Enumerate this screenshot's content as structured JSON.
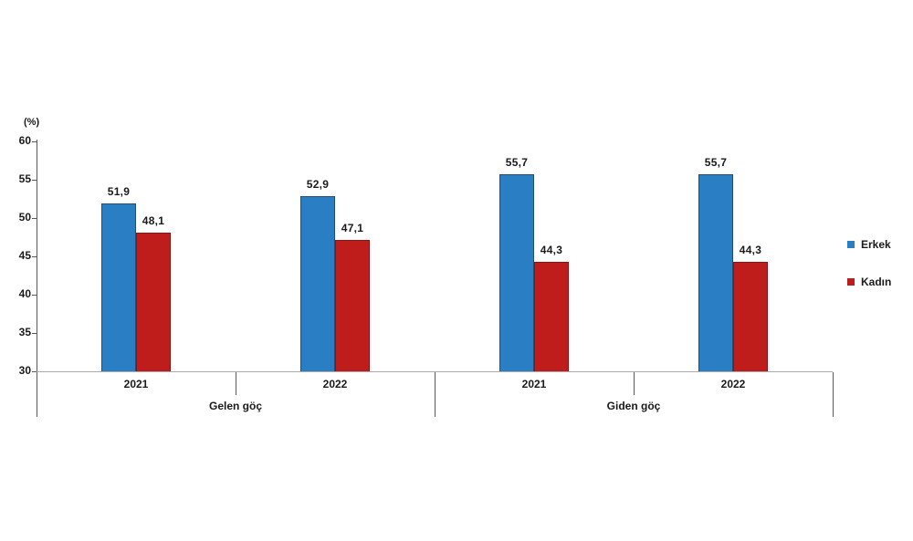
{
  "chart_data": {
    "type": "bar",
    "title": "",
    "unit_label": "(%)",
    "ylabel": "(%)",
    "ylim": [
      30,
      60
    ],
    "yticks": [
      30,
      35,
      40,
      45,
      50,
      55,
      60
    ],
    "grid": "off",
    "decimal_separator": ",",
    "groups": [
      {
        "label": "Gelen göç",
        "categories": [
          "2021",
          "2022"
        ]
      },
      {
        "label": "Giden göç",
        "categories": [
          "2021",
          "2022"
        ]
      }
    ],
    "series": [
      {
        "name": "Erkek",
        "color": "#2a7ec4",
        "border_color": "#1f4e79",
        "values": [
          51.9,
          52.9,
          55.7,
          55.7
        ],
        "value_labels": [
          "51,9",
          "52,9",
          "55,7",
          "55,7"
        ]
      },
      {
        "name": "Kadın",
        "color": "#bf1d1c",
        "border_color": "#8b1412",
        "values": [
          48.1,
          47.1,
          44.3,
          44.3
        ],
        "value_labels": [
          "48,1",
          "47,1",
          "44,3",
          "44,3"
        ]
      }
    ],
    "legend": {
      "position": "right"
    },
    "colors": {
      "axis_line": "#595959",
      "baseline": "#ababab",
      "text": "#1a1a1a",
      "background": "#ffffff"
    }
  }
}
